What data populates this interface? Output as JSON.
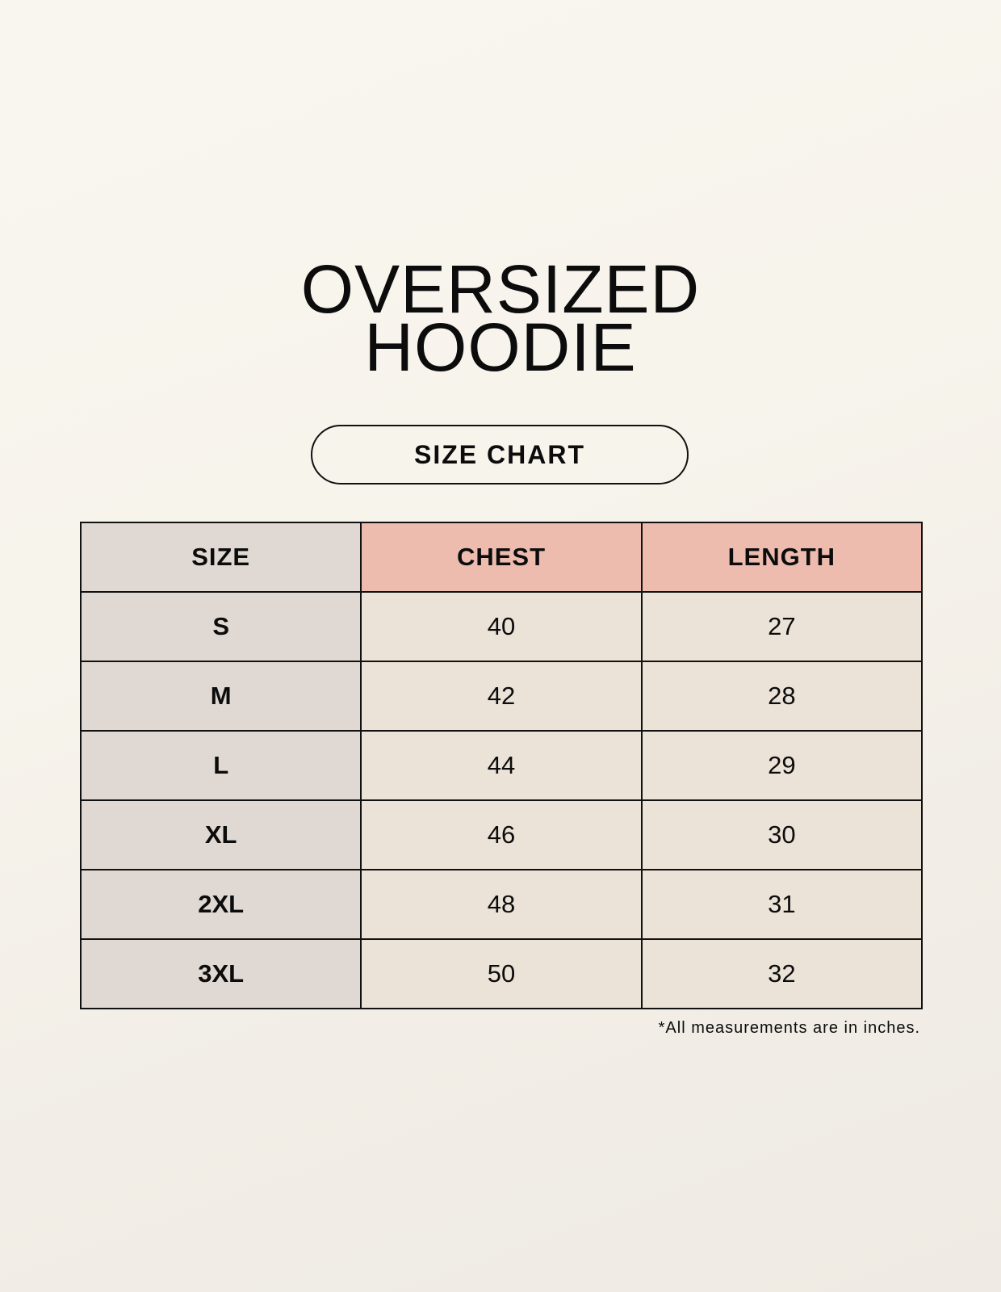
{
  "title": {
    "line1": "OVERSIZED",
    "line2": "HOODIE"
  },
  "badge": "SIZE CHART",
  "table": {
    "headers": [
      "SIZE",
      "CHEST",
      "LENGTH"
    ],
    "rows": [
      [
        "S",
        "40",
        "27"
      ],
      [
        "M",
        "42",
        "28"
      ],
      [
        "L",
        "44",
        "29"
      ],
      [
        "XL",
        "46",
        "30"
      ],
      [
        "2XL",
        "48",
        "31"
      ],
      [
        "3XL",
        "50",
        "32"
      ]
    ]
  },
  "footnote": "*All measurements are in inches.",
  "colors": {
    "size_column": "#e0d9d3",
    "header_accent": "#edbcae",
    "value_cells": "#ebe3d8"
  }
}
